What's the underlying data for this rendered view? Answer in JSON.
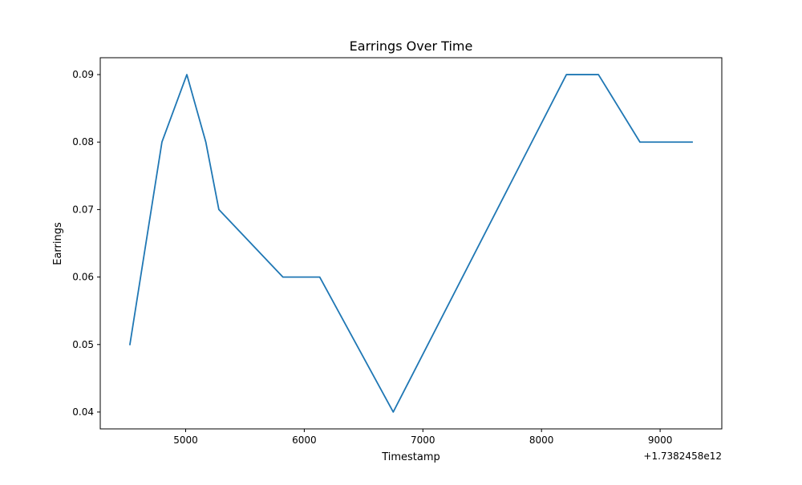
{
  "chart_data": {
    "type": "line",
    "title": "Earrings Over Time",
    "xlabel": "Timestamp",
    "ylabel": "Earrings",
    "x_offset_text": "+1.7382458e12",
    "xlim": [
      4280,
      9520
    ],
    "ylim": [
      0.0375,
      0.0925
    ],
    "x_ticks": [
      5000,
      6000,
      7000,
      8000,
      9000
    ],
    "x_tick_labels": [
      "5000",
      "6000",
      "7000",
      "8000",
      "9000"
    ],
    "y_ticks": [
      0.04,
      0.05,
      0.06,
      0.07,
      0.08,
      0.09
    ],
    "y_tick_labels": [
      "0.04",
      "0.05",
      "0.06",
      "0.07",
      "0.08",
      "0.09"
    ],
    "grid": false,
    "series": [
      {
        "color": "#1f77b4",
        "x": [
          4530,
          4800,
          5010,
          5170,
          5280,
          5820,
          6130,
          6750,
          8210,
          8480,
          8830,
          9270
        ],
        "y": [
          0.05,
          0.08,
          0.09,
          0.08,
          0.07,
          0.06,
          0.06,
          0.04,
          0.09,
          0.09,
          0.08,
          0.08
        ]
      }
    ]
  }
}
